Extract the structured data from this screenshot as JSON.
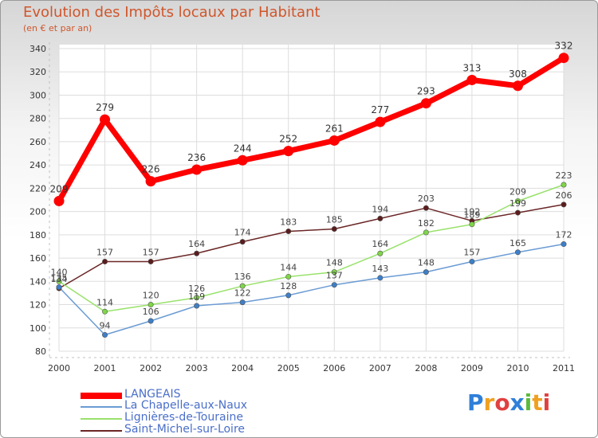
{
  "header": {
    "title": "Evolution des Impôts locaux par Habitant",
    "subtitle": "(en € et par an)"
  },
  "chart_data": {
    "type": "line",
    "title": "Evolution des Impôts locaux par Habitant",
    "subtitle": "(en € et par an)",
    "xlabel": "",
    "ylabel": "",
    "x": [
      "2000",
      "2001",
      "2002",
      "2003",
      "2004",
      "2005",
      "2006",
      "2007",
      "2008",
      "2009",
      "2010",
      "2011"
    ],
    "ylim": [
      80,
      340
    ],
    "yticks": [
      80,
      100,
      120,
      140,
      160,
      180,
      200,
      220,
      240,
      260,
      280,
      300,
      320,
      340
    ],
    "grid": true,
    "legend_position": "bottom-left",
    "series": [
      {
        "name": "LANGEAIS",
        "color": "#ff0000",
        "values": [
          209,
          279,
          226,
          236,
          244,
          252,
          261,
          277,
          293,
          313,
          308,
          332
        ]
      },
      {
        "name": "La Chapelle-aux-Naux",
        "color": "#6a9bd4",
        "values": [
          135,
          94,
          106,
          119,
          122,
          128,
          137,
          143,
          148,
          157,
          165,
          172
        ]
      },
      {
        "name": "Lignières-de-Touraine",
        "color": "#99e26b",
        "values": [
          140,
          114,
          120,
          126,
          136,
          144,
          148,
          164,
          182,
          189,
          209,
          223
        ]
      },
      {
        "name": "Saint-Michel-sur-Loire",
        "color": "#6b2626",
        "values": [
          134,
          157,
          157,
          164,
          174,
          183,
          185,
          194,
          203,
          192,
          199,
          206
        ]
      }
    ]
  },
  "logo": {
    "letters": [
      "P",
      "r",
      "o",
      "x",
      "i",
      "t",
      "i"
    ],
    "colors": [
      "#2f7fd8",
      "#f0a020",
      "#e04040",
      "#2f7fd8",
      "#5cba3c",
      "#f0a020",
      "#e04040"
    ]
  }
}
